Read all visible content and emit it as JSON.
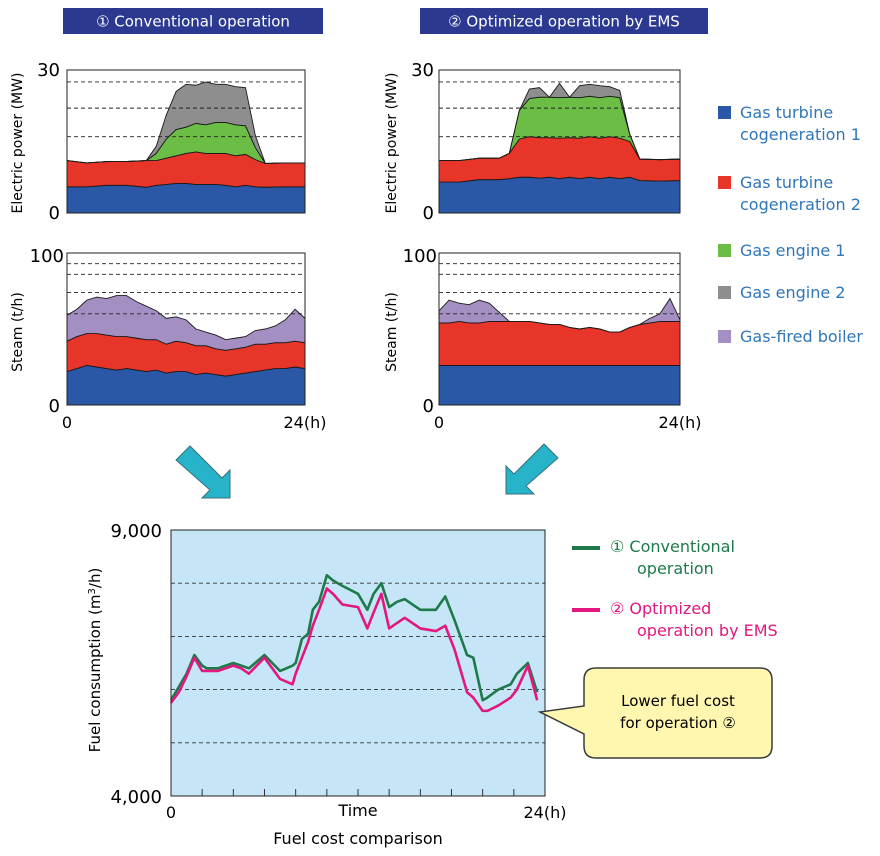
{
  "headers": [
    {
      "label": "① Conventional operation"
    },
    {
      "label": "② Optimized operation by EMS"
    }
  ],
  "legend": [
    {
      "label_lines": [
        "Gas turbine",
        "cogeneration 1"
      ],
      "color": "#2b58a6"
    },
    {
      "label_lines": [
        "Gas turbine",
        "cogeneration 2"
      ],
      "color": "#e8352a"
    },
    {
      "label_lines": [
        "Gas engine 1"
      ],
      "color": "#6bbd45"
    },
    {
      "label_lines": [
        "Gas engine 2"
      ],
      "color": "#8e8e8e"
    },
    {
      "label_lines": [
        "Gas-fired boiler"
      ],
      "color": "#a48fc2"
    }
  ],
  "colors": {
    "header_bg": "#2b3990",
    "header_text": "#ffffff",
    "conventional": "#1e7a4a",
    "optimized": "#e2177f",
    "plot_bg": "#c6e6f7",
    "callout_bg": "#fff7b0",
    "callout_border": "#3a3a3a",
    "arrow": "#27b3c9"
  },
  "legend_label_color": "#2f76b9",
  "bottom_legend": [
    {
      "label_lines": [
        "① Conventional",
        "operation"
      ],
      "color": "#1e7a4a"
    },
    {
      "label_lines": [
        "② Optimized",
        "operation by EMS"
      ],
      "color": "#e2177f"
    }
  ],
  "callout_lines": [
    "Lower fuel cost",
    "for operation ②"
  ],
  "bottom_caption": "Fuel cost comparison",
  "chart_data": [
    {
      "type": "area",
      "title": "① Conventional operation",
      "ylabel": "Electric power (MW)",
      "ylim": [
        0,
        30
      ],
      "yticks": [
        "0",
        "30"
      ],
      "xticks": [
        "0",
        "24(h)"
      ],
      "x": [
        0,
        2,
        4,
        6,
        8,
        9,
        10,
        11,
        12,
        13,
        14,
        15,
        16,
        17,
        18,
        19,
        20,
        22,
        24
      ],
      "series": [
        {
          "name": "Gas turbine cogeneration 1",
          "values": [
            5.5,
            5.5,
            5.8,
            5.8,
            5.4,
            5.8,
            6,
            6.2,
            6.2,
            6,
            6,
            6,
            5.8,
            5.5,
            5.8,
            5.5,
            5.4,
            5.5,
            5.5
          ]
        },
        {
          "name": "Gas turbine cogeneration 2",
          "values": [
            5.5,
            5,
            5,
            5,
            5.6,
            5.2,
            5.5,
            5.8,
            6.3,
            6.8,
            6.5,
            6.5,
            6.7,
            6.5,
            6.5,
            5.7,
            5,
            5,
            5
          ]
        },
        {
          "name": "Gas engine 1",
          "values": [
            0,
            0,
            0,
            0,
            0,
            1.5,
            4,
            5.5,
            5.5,
            6,
            6,
            6.5,
            6.5,
            6.5,
            6,
            2.5,
            0,
            0,
            0
          ]
        },
        {
          "name": "Gas engine 2",
          "values": [
            0,
            0,
            0,
            0,
            0,
            1.5,
            5,
            8,
            9,
            8,
            9,
            8,
            8,
            8,
            8,
            2.5,
            0,
            0,
            0
          ]
        }
      ],
      "reference_lines": [
        16,
        22,
        27.5
      ]
    },
    {
      "type": "area",
      "title": "① Conventional operation",
      "ylabel": "Steam (t/h)",
      "ylim": [
        0,
        100
      ],
      "yticks": [
        "0",
        "100"
      ],
      "xticks": [
        "0",
        "24(h)"
      ],
      "x": [
        0,
        1,
        2,
        3,
        4,
        5,
        6,
        7,
        8,
        9,
        10,
        11,
        12,
        13,
        14,
        15,
        16,
        17,
        18,
        19,
        20,
        21,
        22,
        23,
        24
      ],
      "series": [
        {
          "name": "Gas turbine cogeneration 1",
          "values": [
            22,
            24,
            26,
            25,
            24,
            23,
            24,
            23,
            22,
            23,
            21,
            22,
            22,
            20,
            21,
            20,
            19,
            20,
            21,
            22,
            23,
            24,
            24,
            25,
            24
          ]
        },
        {
          "name": "Gas turbine cogeneration 2",
          "values": [
            20,
            21,
            21,
            22,
            22,
            22,
            21,
            21,
            21,
            20,
            19,
            20,
            19,
            19,
            18,
            17,
            17,
            17,
            17,
            18,
            17,
            17,
            17,
            17,
            17
          ]
        },
        {
          "name": "Gas-fired boiler",
          "values": [
            17,
            18,
            22,
            24,
            24,
            27,
            27,
            24,
            22,
            19,
            17,
            16,
            15,
            11,
            9,
            9,
            7,
            7,
            7,
            9,
            10,
            11,
            15,
            21,
            16
          ]
        }
      ],
      "reference_lines": [
        60,
        74,
        86,
        93
      ]
    },
    {
      "type": "area",
      "title": "② Optimized operation by EMS",
      "ylabel": "Electric power (MW)",
      "ylim": [
        0,
        30
      ],
      "yticks": [
        "0",
        "30"
      ],
      "xticks": [
        "0",
        "24(h)"
      ],
      "x": [
        0,
        2,
        4,
        6,
        7,
        8,
        9,
        10,
        11,
        12,
        13,
        14,
        15,
        16,
        17,
        18,
        19,
        20,
        22,
        24
      ],
      "series": [
        {
          "name": "Gas turbine cogeneration 1",
          "values": [
            6.5,
            6.5,
            7,
            7,
            7.2,
            7.5,
            7.5,
            7.3,
            7.5,
            7.2,
            7.5,
            7.2,
            7.5,
            7.2,
            7.5,
            7.2,
            7.5,
            6.8,
            6.7,
            6.8
          ]
        },
        {
          "name": "Gas turbine cogeneration 2",
          "values": [
            4.5,
            4.5,
            4.5,
            4.5,
            5.3,
            8,
            8.5,
            8.5,
            8.3,
            8.5,
            8.3,
            8.5,
            8.5,
            8.5,
            8.5,
            8.5,
            7.5,
            4.5,
            4.5,
            4.5
          ]
        },
        {
          "name": "Gas engine 1",
          "values": [
            0,
            0,
            0,
            0,
            0,
            6,
            8,
            8.5,
            8.5,
            8.5,
            8.5,
            8.5,
            8.5,
            8.5,
            8.5,
            8.5,
            1.5,
            0,
            0,
            0
          ]
        },
        {
          "name": "Gas engine 2",
          "values": [
            0,
            0,
            0,
            0,
            0,
            0,
            2,
            2,
            0,
            3,
            0,
            2.5,
            2.5,
            2.5,
            2,
            1.5,
            0,
            0,
            0,
            0
          ]
        }
      ],
      "reference_lines": [
        16,
        22,
        27.5
      ]
    },
    {
      "type": "area",
      "title": "② Optimized operation by EMS",
      "ylabel": "Steam (t/h)",
      "ylim": [
        0,
        100
      ],
      "yticks": [
        "0",
        "100"
      ],
      "xticks": [
        "0",
        "24(h)"
      ],
      "x": [
        0,
        1,
        2,
        3,
        4,
        5,
        6,
        7,
        8,
        9,
        10,
        11,
        12,
        13,
        14,
        15,
        16,
        17,
        18,
        19,
        20,
        21,
        22,
        23,
        24
      ],
      "series": [
        {
          "name": "Gas turbine cogeneration 1",
          "values": [
            26,
            26,
            26,
            26,
            26,
            26,
            26,
            26,
            26,
            26,
            26,
            26,
            26,
            26,
            26,
            26,
            26,
            26,
            26,
            26,
            26,
            26,
            26,
            26,
            26
          ]
        },
        {
          "name": "Gas turbine cogeneration 2",
          "values": [
            28,
            28,
            29,
            28,
            28,
            29,
            29,
            29,
            29,
            29,
            28,
            27,
            27,
            25,
            24,
            25,
            24,
            22,
            22,
            25,
            27,
            28,
            29,
            29,
            29
          ]
        },
        {
          "name": "Gas-fired boiler",
          "values": [
            8,
            15,
            12,
            12,
            15,
            12,
            6,
            0,
            0,
            0,
            0,
            0,
            0,
            0,
            0,
            0,
            0,
            0,
            0,
            0,
            0,
            3,
            5,
            15,
            1
          ]
        }
      ],
      "reference_lines": [
        60,
        74,
        86,
        93
      ]
    },
    {
      "type": "line",
      "title": "Fuel cost comparison",
      "xlabel": "Time",
      "ylabel": "Fuel consumption (m3/h)",
      "ylim": [
        4000,
        9000
      ],
      "yticks": [
        "4,000",
        "9,000"
      ],
      "xticks": [
        "0",
        "24(h)"
      ],
      "xlim": [
        0,
        24
      ],
      "reference_lines": [
        5000,
        6000,
        7000,
        8000
      ],
      "series": [
        {
          "name": "① Conventional operation",
          "x": [
            0,
            0.5,
            1,
            1.5,
            2,
            2.3,
            3,
            4,
            4.5,
            5,
            6,
            7,
            7.8,
            8,
            8.4,
            8.8,
            9.1,
            9.5,
            10,
            10.4,
            11,
            12,
            12.6,
            13,
            13.5,
            14,
            14.5,
            15,
            16,
            17,
            17.6,
            18.2,
            19,
            19.4,
            20,
            20.3,
            21,
            21.8,
            22.2,
            22.9,
            23.5
          ],
          "values": [
            5800,
            6050,
            6300,
            6650,
            6450,
            6400,
            6400,
            6500,
            6450,
            6400,
            6650,
            6350,
            6450,
            6500,
            6950,
            7050,
            7500,
            7650,
            8150,
            8050,
            7950,
            7800,
            7500,
            7800,
            8000,
            7550,
            7650,
            7700,
            7500,
            7500,
            7750,
            7300,
            6650,
            6600,
            5800,
            5850,
            6000,
            6100,
            6300,
            6500,
            5950
          ]
        },
        {
          "name": "② Optimized operation by EMS",
          "x": [
            0,
            0.5,
            1,
            1.5,
            2,
            2.3,
            3,
            4,
            4.5,
            5,
            6,
            7,
            7.8,
            8,
            8.4,
            8.8,
            9.1,
            9.5,
            10,
            10.4,
            11,
            12,
            12.6,
            13,
            13.5,
            14,
            14.5,
            15,
            16,
            17,
            17.6,
            18.2,
            19,
            19.4,
            20,
            20.3,
            21,
            21.8,
            22.2,
            22.9,
            23.5
          ],
          "values": [
            5750,
            5950,
            6250,
            6600,
            6350,
            6350,
            6350,
            6450,
            6400,
            6300,
            6600,
            6200,
            6100,
            6300,
            6600,
            6900,
            7200,
            7500,
            7900,
            7800,
            7600,
            7550,
            7150,
            7450,
            7800,
            7150,
            7250,
            7350,
            7150,
            7100,
            7200,
            6750,
            5950,
            5850,
            5600,
            5600,
            5700,
            5850,
            6000,
            6450,
            5800
          ]
        }
      ]
    }
  ]
}
